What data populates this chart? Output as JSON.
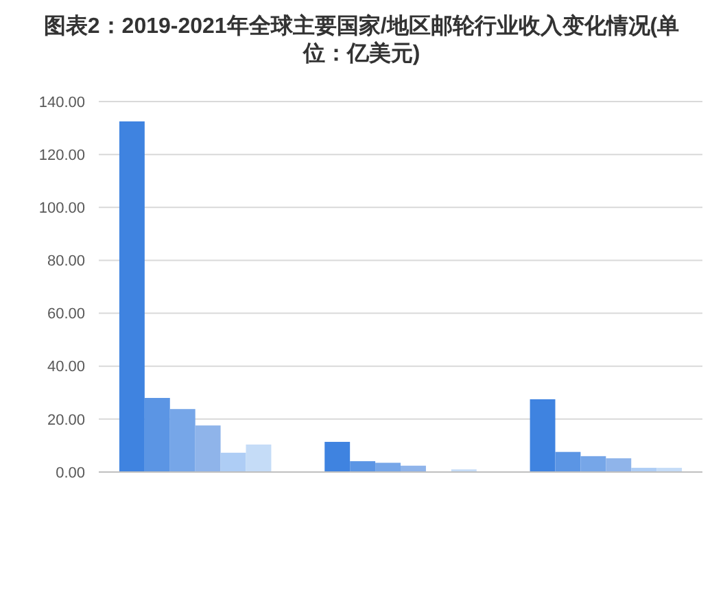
{
  "chart_data": {
    "type": "bar",
    "title": "图表2：2019-2021年全球主要国家/地区邮轮行业收入变化情况(单位：亿美元)",
    "categories": [
      null,
      null,
      null
    ],
    "series": [
      {
        "color": "#3f83e0",
        "values": [
          132.5,
          11.4,
          27.5
        ]
      },
      {
        "color": "#5b95e4",
        "values": [
          28,
          4.1,
          7.6
        ]
      },
      {
        "color": "#76a6e8",
        "values": [
          23.8,
          3.5,
          6
        ]
      },
      {
        "color": "#8fb4ea",
        "values": [
          17.6,
          2.4,
          5.2
        ]
      },
      {
        "color": "#aecdf5",
        "values": [
          7.3,
          null,
          1.6
        ]
      },
      {
        "color": "#c5dcf7",
        "values": [
          10.4,
          1,
          1.6
        ]
      }
    ],
    "ylim": [
      0,
      140
    ],
    "yticks": [
      {
        "value": 0,
        "label": "0.00"
      },
      {
        "value": 20,
        "label": "20.00"
      },
      {
        "value": 40,
        "label": "40.00"
      },
      {
        "value": 60,
        "label": "60.00"
      },
      {
        "value": 80,
        "label": "80.00"
      },
      {
        "value": 100,
        "label": "100.00"
      },
      {
        "value": 120,
        "label": "120.00"
      },
      {
        "value": 140,
        "label": "140.00"
      }
    ],
    "grid": "y"
  }
}
